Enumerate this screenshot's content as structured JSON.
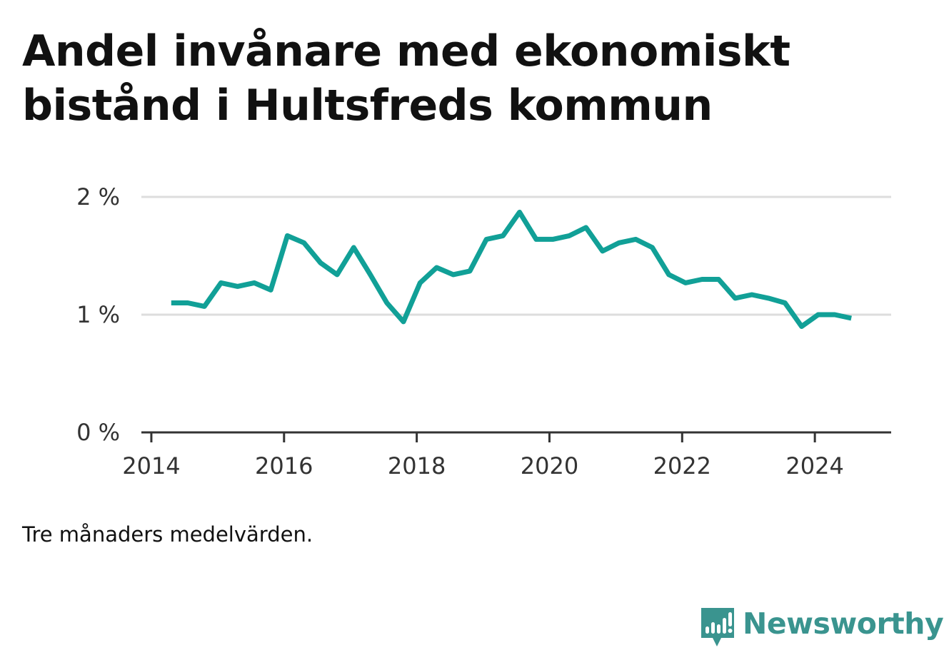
{
  "title": "Andel invånare med ekonomiskt bistånd i Hultsfreds kommun",
  "note": "Tre månaders medelvärden.",
  "brand": {
    "name": "Newsworthy",
    "icon": "bar-chart-speech-bubble-icon",
    "color": "#3a948f"
  },
  "colors": {
    "line": "#11a097",
    "grid": "#dddddd",
    "axis": "#333333"
  },
  "chart_data": {
    "type": "line",
    "title": "Andel invånare med ekonomiskt bistånd i Hultsfreds kommun",
    "xlabel": "",
    "ylabel": "",
    "xlim": [
      2013.85,
      2025.15
    ],
    "ylim": [
      0,
      2
    ],
    "x_ticks": [
      {
        "value": 2014,
        "label": "2014"
      },
      {
        "value": 2016,
        "label": "2016"
      },
      {
        "value": 2018,
        "label": "2018"
      },
      {
        "value": 2020,
        "label": "2020"
      },
      {
        "value": 2022,
        "label": "2022"
      },
      {
        "value": 2024,
        "label": "2024"
      }
    ],
    "y_ticks": [
      {
        "value": 0,
        "label": "0 %"
      },
      {
        "value": 1,
        "label": "1 %"
      },
      {
        "value": 2,
        "label": "2 %"
      }
    ],
    "grid": true,
    "legend": "none",
    "series": [
      {
        "x": [
          2014.3,
          2014.55,
          2014.8,
          2015.05,
          2015.3,
          2015.55,
          2015.8,
          2016.05,
          2016.3,
          2016.55,
          2016.8,
          2017.05,
          2017.3,
          2017.55,
          2017.8,
          2018.05,
          2018.3,
          2018.55,
          2018.8,
          2019.05,
          2019.3,
          2019.55,
          2019.8,
          2020.05,
          2020.3,
          2020.55,
          2020.8,
          2021.05,
          2021.3,
          2021.55,
          2021.8,
          2022.05,
          2022.3,
          2022.55,
          2022.8,
          2023.05,
          2023.3,
          2023.55,
          2023.8,
          2024.05,
          2024.3,
          2024.55
        ],
        "y": [
          1.1,
          1.1,
          1.07,
          1.27,
          1.24,
          1.27,
          1.21,
          1.67,
          1.61,
          1.44,
          1.34,
          1.57,
          1.34,
          1.1,
          0.94,
          1.27,
          1.4,
          1.34,
          1.37,
          1.64,
          1.67,
          1.87,
          1.64,
          1.64,
          1.67,
          1.74,
          1.54,
          1.61,
          1.64,
          1.57,
          1.34,
          1.27,
          1.3,
          1.3,
          1.14,
          1.17,
          1.14,
          1.1,
          0.9,
          1.0,
          1.0,
          0.97
        ]
      }
    ]
  }
}
